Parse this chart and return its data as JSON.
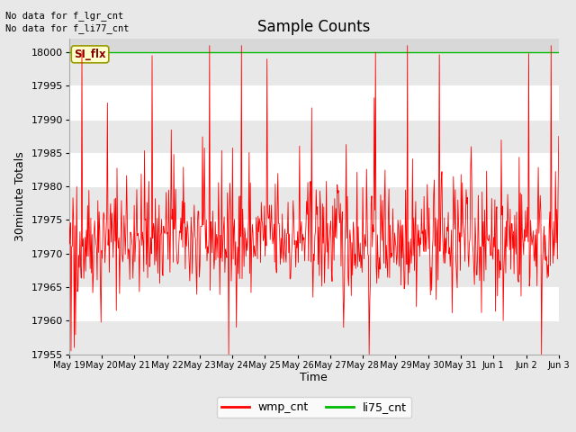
{
  "title": "Sample Counts",
  "xlabel": "Time",
  "ylabel": "30minute Totals",
  "annotation_lines": [
    "No data for f_lgr_cnt",
    "No data for f_li77_cnt"
  ],
  "annotation_box_label": "SI_flx",
  "ylim": [
    17955,
    18002
  ],
  "y_ticks": [
    17955,
    17960,
    17965,
    17970,
    17975,
    17980,
    17985,
    17990,
    17995,
    18000
  ],
  "x_tick_labels": [
    "May 19",
    "May 20",
    "May 21",
    "May 22",
    "May 23",
    "May 24",
    "May 25",
    "May 26",
    "May 27",
    "May 28",
    "May 29",
    "May 30",
    "May 31",
    "Jun 1",
    "Jun 2",
    "Jun 3"
  ],
  "li75_cnt_value": 18000,
  "wmp_cnt_color": "#ff0000",
  "li75_cnt_color": "#00bb00",
  "figure_bg_color": "#e8e8e8",
  "plot_bg_color": "#d8d8d8",
  "grid_color": "#ffffff",
  "seed": 42,
  "n_points": 768,
  "wmp_base": 17972,
  "wmp_std": 4,
  "title_fontsize": 12,
  "label_fontsize": 9,
  "tick_fontsize": 8
}
